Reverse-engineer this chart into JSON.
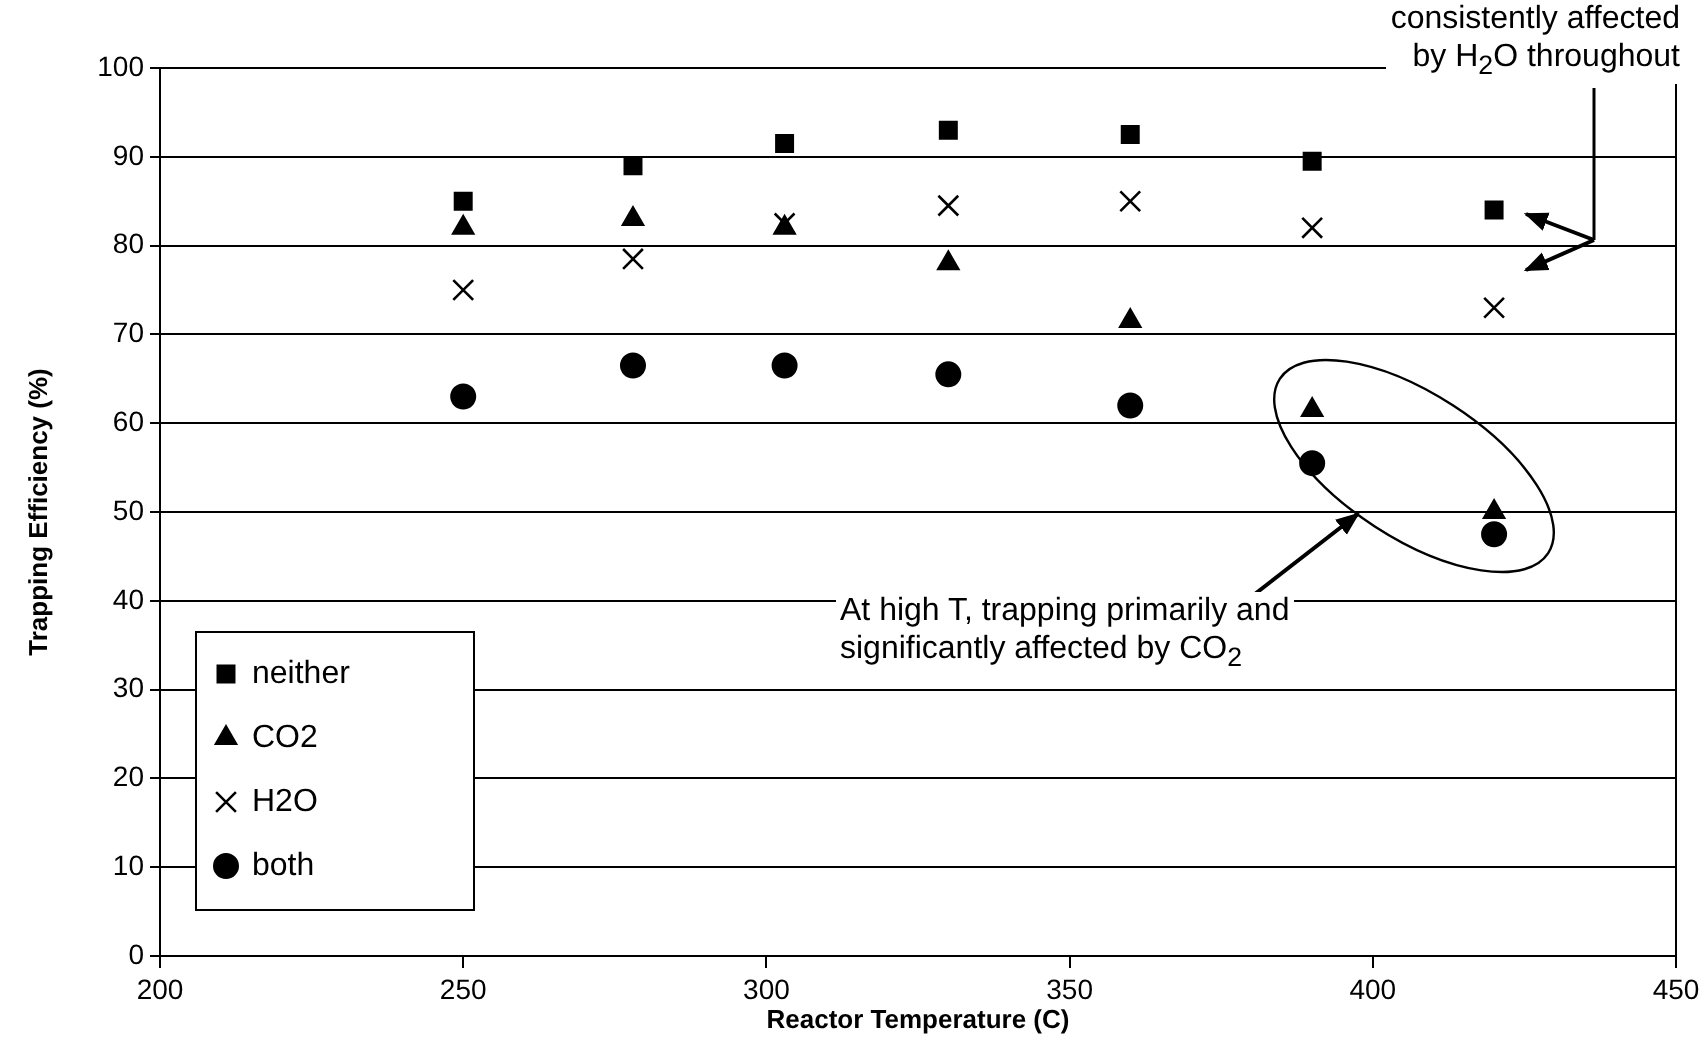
{
  "chart_data": {
    "type": "scatter",
    "xlabel": "Reactor Temperature (C)",
    "ylabel": "Trapping Efficiency (%)",
    "x": [
      250,
      278,
      303,
      330,
      360,
      390,
      420
    ],
    "series": [
      {
        "name": "neither",
        "color": "#000000",
        "marker": "square",
        "values": [
          85,
          89,
          91.5,
          93,
          92.5,
          89.5,
          84
        ]
      },
      {
        "name": "CO2",
        "color": "#000000",
        "marker": "triangle",
        "values": [
          82,
          83,
          82,
          78,
          71.5,
          61.5,
          50
        ]
      },
      {
        "name": "H2O",
        "color": "#000000",
        "marker": "cross",
        "values": [
          75,
          78.5,
          82.5,
          84.5,
          85,
          82,
          73
        ]
      },
      {
        "name": "both",
        "color": "#000000",
        "marker": "circle",
        "values": [
          63,
          66.5,
          66.5,
          65.5,
          62,
          55.5,
          47.5
        ]
      }
    ],
    "xlim": [
      200,
      450
    ],
    "xticks": [
      200,
      250,
      300,
      350,
      400,
      450
    ],
    "ylim": [
      0,
      100
    ],
    "yticks": [
      0,
      10,
      20,
      30,
      40,
      50,
      60,
      70,
      80,
      90,
      100
    ],
    "grid": "y",
    "legend": "bottom left",
    "annotations": [
      "consistently affected\nby H$_{2}$O throughout",
      "At high T, trapping primarily and\nsignificantly affected by CO$_{2}$"
    ]
  }
}
